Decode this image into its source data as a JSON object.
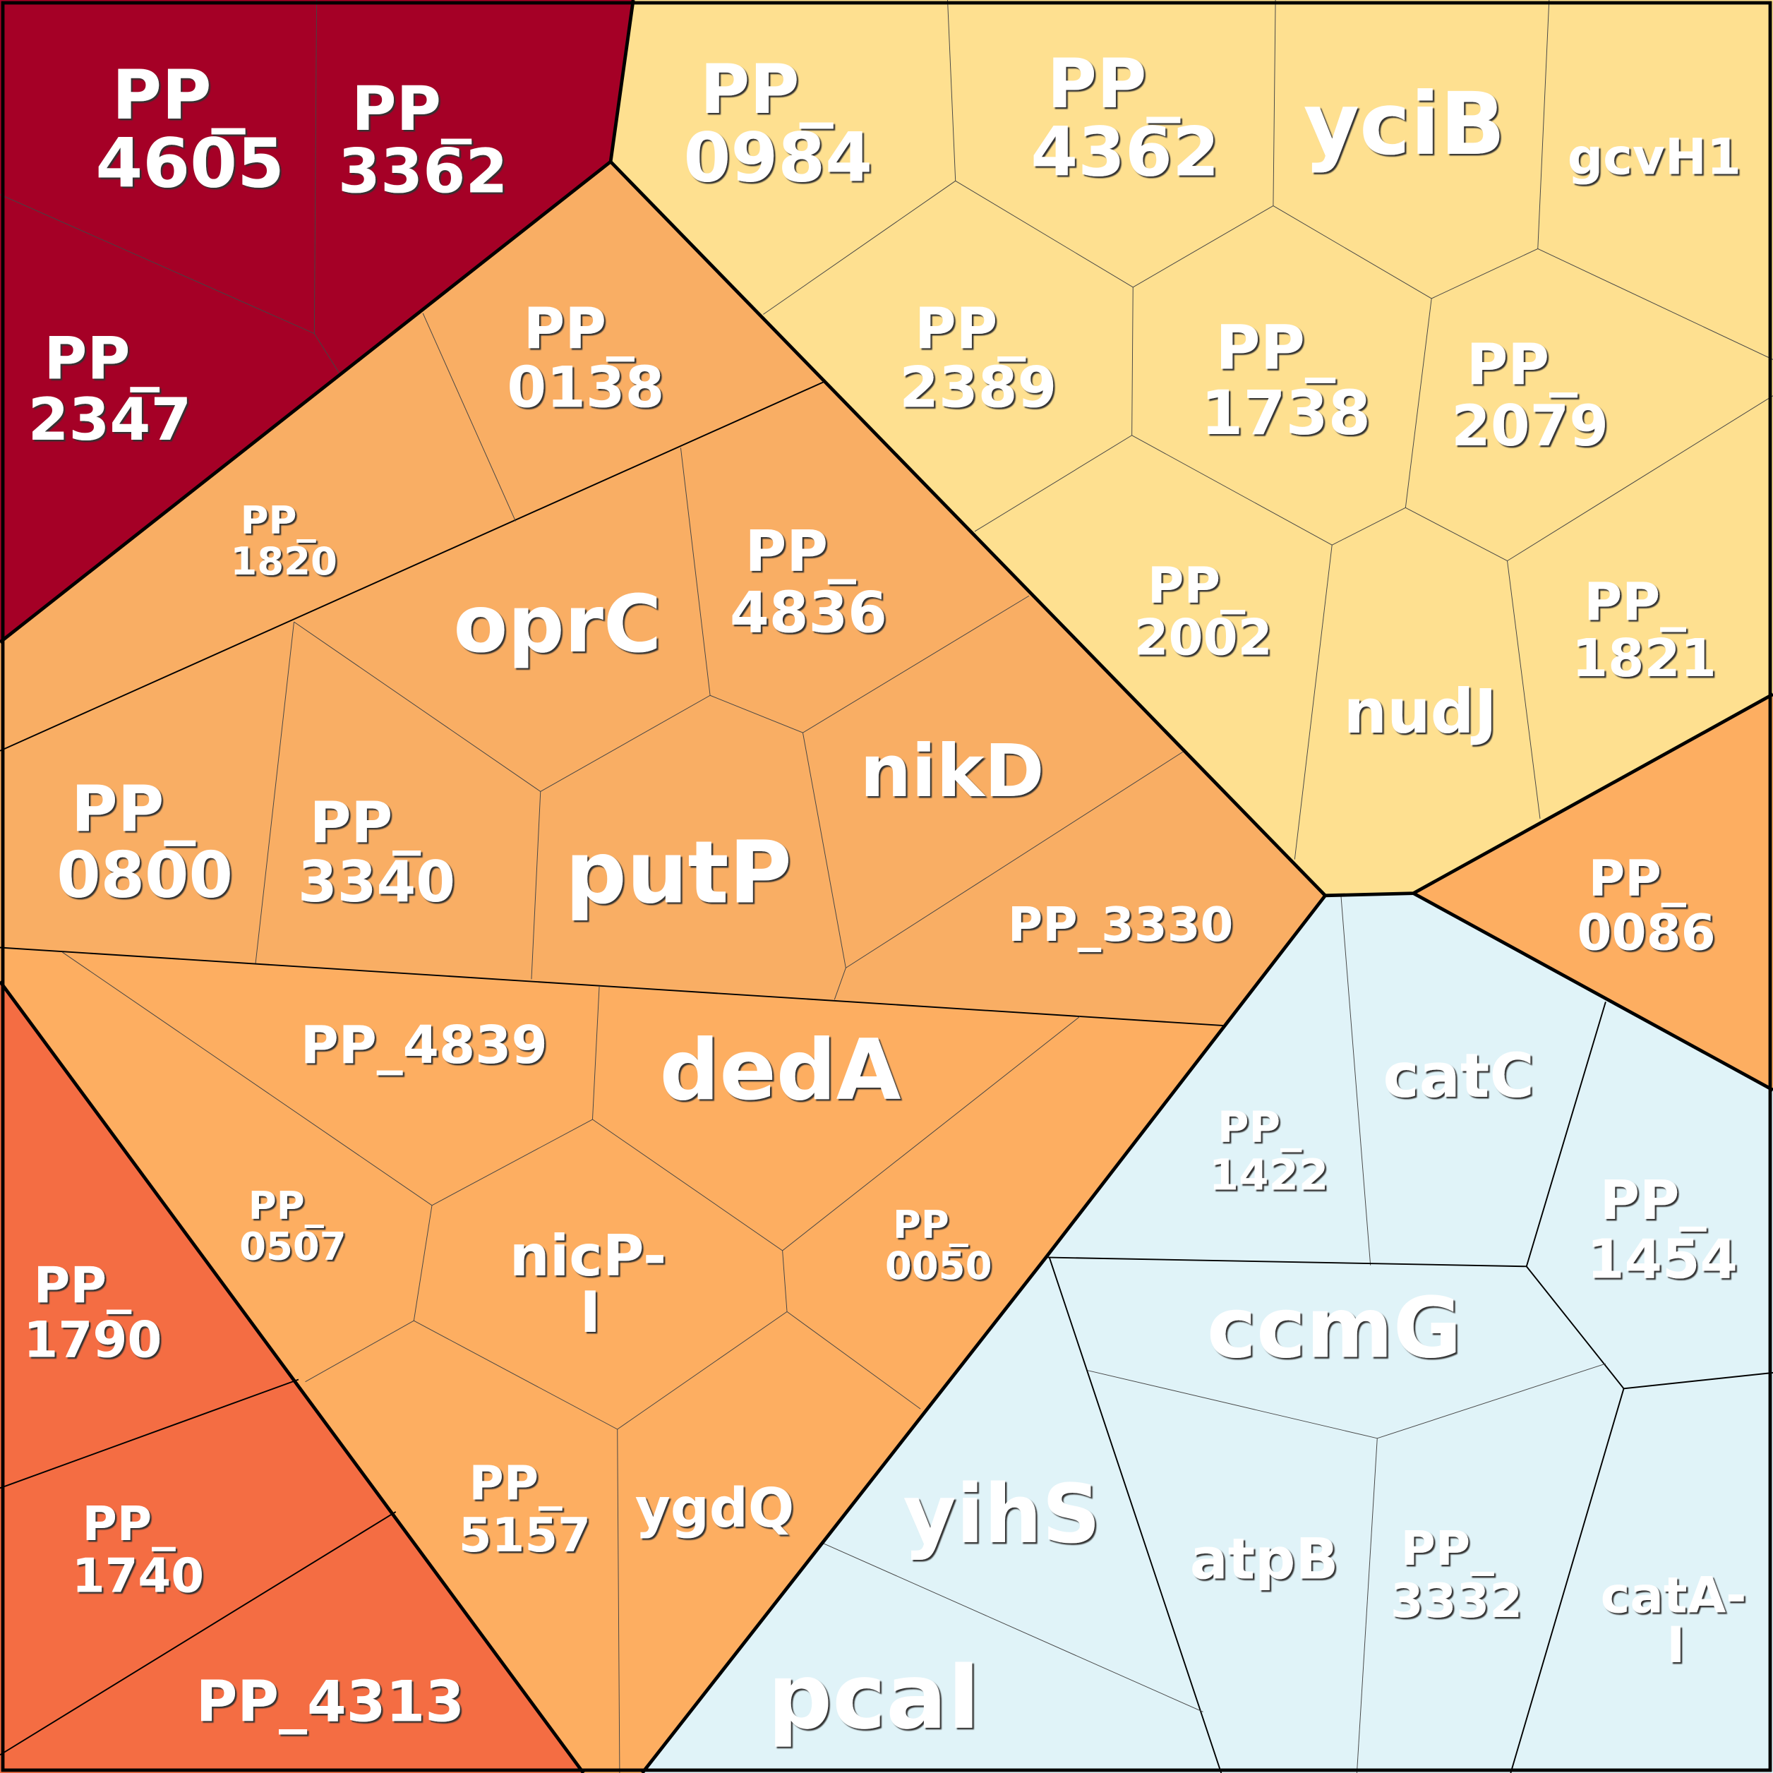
{
  "colors": {
    "dark_red": "#a50026",
    "red_orange": "#f46d43",
    "orange": "#f9ae64",
    "orange2": "#fdae61",
    "yellow": "#fee090",
    "light_blue": "#e0f3f8"
  },
  "cells": {
    "pp4605": {
      "l1": "PP_",
      "l2": "4605"
    },
    "pp3362": {
      "l1": "PP_",
      "l2": "3362"
    },
    "pp2347": {
      "l1": "PP_",
      "l2": "2347"
    },
    "pp0984": {
      "l1": "PP_",
      "l2": "0984"
    },
    "pp4362": {
      "l1": "PP_",
      "l2": "4362"
    },
    "yciB": {
      "l1": "yciB"
    },
    "gcvH1": {
      "l1": "gcvH1"
    },
    "pp0138": {
      "l1": "PP_",
      "l2": "0138"
    },
    "pp2389": {
      "l1": "PP_",
      "l2": "2389"
    },
    "pp1738": {
      "l1": "PP_",
      "l2": "1738"
    },
    "pp2079": {
      "l1": "PP_",
      "l2": "2079"
    },
    "pp1820": {
      "l1": "PP_",
      "l2": "1820"
    },
    "oprC": {
      "l1": "oprC"
    },
    "pp4836": {
      "l1": "PP_",
      "l2": "4836"
    },
    "pp2002": {
      "l1": "PP_",
      "l2": "2002"
    },
    "pp1821": {
      "l1": "PP_",
      "l2": "1821"
    },
    "nudJ": {
      "l1": "nudJ"
    },
    "nikD": {
      "l1": "nikD"
    },
    "pp0800": {
      "l1": "PP_",
      "l2": "0800"
    },
    "pp3340": {
      "l1": "PP_",
      "l2": "3340"
    },
    "putP": {
      "l1": "putP"
    },
    "pp3330": {
      "l1": "PP_3330"
    },
    "pp0086": {
      "l1": "PP_",
      "l2": "0086"
    },
    "pp4839": {
      "l1": "PP_4839"
    },
    "dedA": {
      "l1": "dedA"
    },
    "catC": {
      "l1": "catC"
    },
    "pp1422": {
      "l1": "PP_",
      "l2": "1422"
    },
    "pp1454": {
      "l1": "PP_",
      "l2": "1454"
    },
    "pp0507": {
      "l1": "PP_",
      "l2": "0507"
    },
    "nicPI": {
      "l1": "nicP-",
      "l2": "I"
    },
    "pp0050": {
      "l1": "PP_",
      "l2": "0050"
    },
    "pp1790": {
      "l1": "PP_",
      "l2": "1790"
    },
    "ccmG": {
      "l1": "ccmG"
    },
    "pp5157": {
      "l1": "PP_",
      "l2": "5157"
    },
    "ygdQ": {
      "l1": "ygdQ"
    },
    "yihS": {
      "l1": "yihS"
    },
    "atpB": {
      "l1": "atpB"
    },
    "pp3332": {
      "l1": "PP_",
      "l2": "3332"
    },
    "catAI": {
      "l1": "catA-",
      "l2": "I"
    },
    "pp1740": {
      "l1": "PP_",
      "l2": "1740"
    },
    "pp4313": {
      "l1": "PP_4313"
    },
    "pcaI": {
      "l1": "pcaI"
    }
  }
}
